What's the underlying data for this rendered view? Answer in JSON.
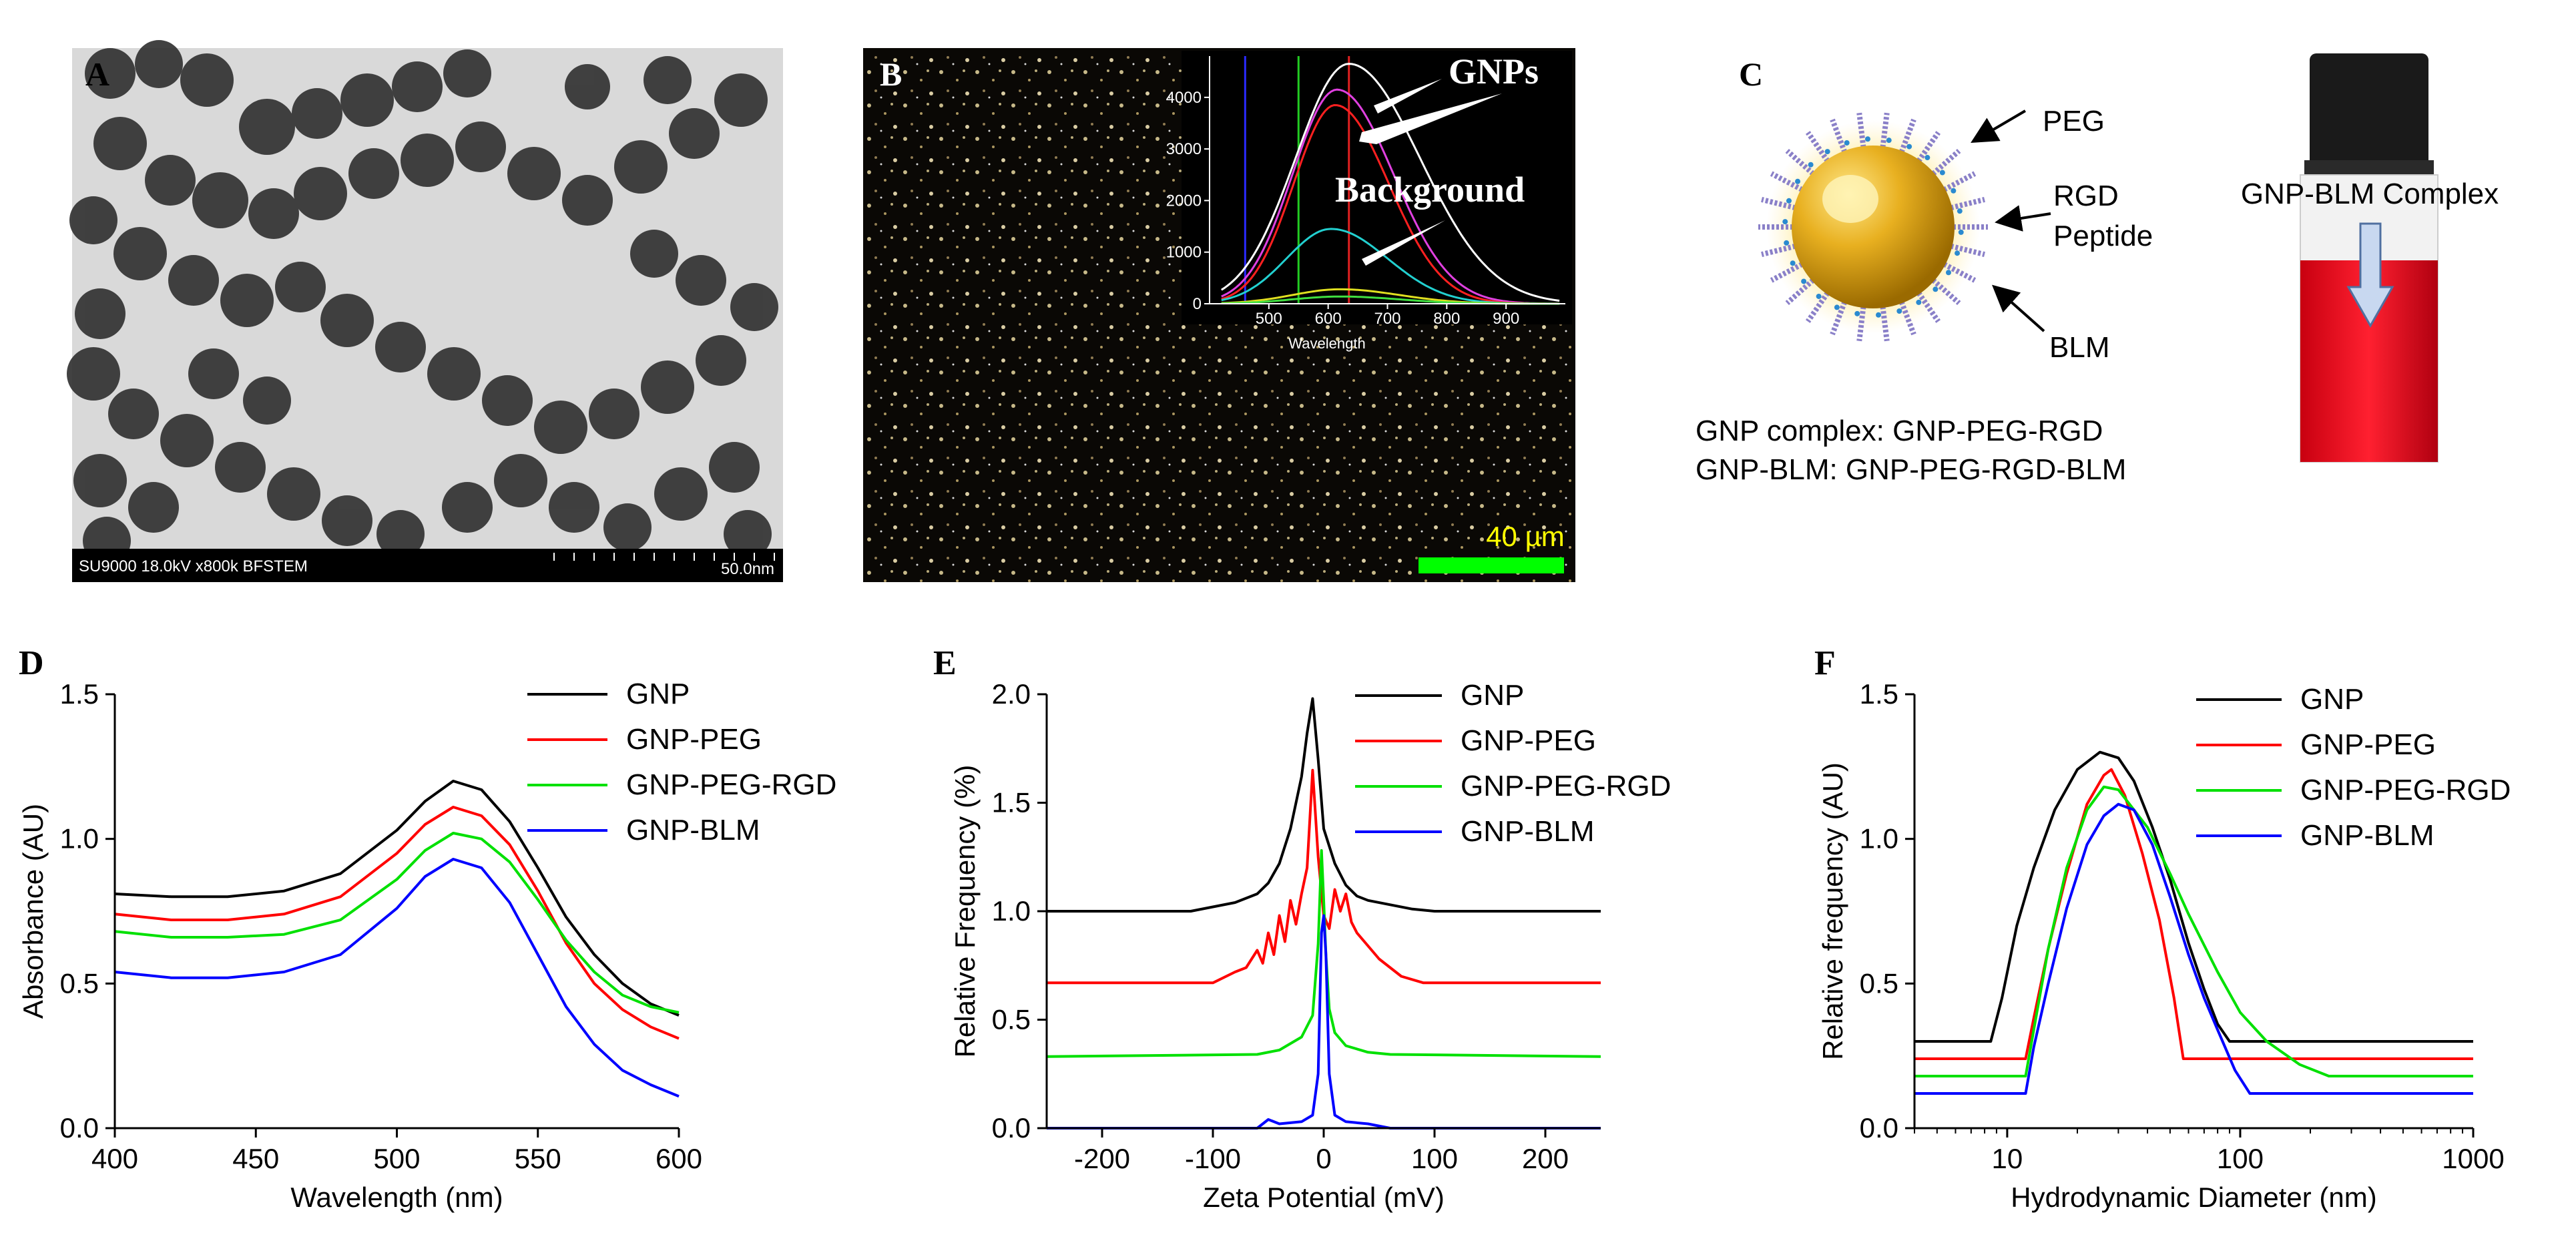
{
  "panels": {
    "A": {
      "label": "A",
      "info_left": "SU9000 18.0kV x800k BFSTEM",
      "info_right": "50.0nm"
    },
    "B": {
      "label": "B",
      "scale_bar_text": "40 µm",
      "inset": {
        "annotation_gnps": "GNPs",
        "annotation_background": "Background",
        "xlabel": "Wavelength",
        "x_ticks": [
          500,
          600,
          700,
          800,
          900
        ],
        "y_ticks": [
          0,
          1000,
          2000,
          3000,
          4000
        ],
        "xlim": [
          400,
          1000
        ],
        "ylim": [
          0,
          4800
        ],
        "vertical_lines_nm": [
          {
            "x": 460,
            "color": "#2a2aff"
          },
          {
            "x": 550,
            "color": "#22cc22"
          },
          {
            "x": 635,
            "color": "#e02020"
          }
        ],
        "series": [
          {
            "name": "white",
            "color": "#ffffff",
            "peak": 4650,
            "center": 635,
            "wl": 90,
            "wr": 120
          },
          {
            "name": "magenta",
            "color": "#e040e0",
            "peak": 4150,
            "center": 615,
            "wl": 75,
            "wr": 95
          },
          {
            "name": "red",
            "color": "#ff2020",
            "peak": 3850,
            "center": 612,
            "wl": 70,
            "wr": 90
          },
          {
            "name": "cyan",
            "color": "#22d0d0",
            "peak": 1450,
            "center": 605,
            "wl": 75,
            "wr": 95
          },
          {
            "name": "yellow",
            "color": "#e0e020",
            "peak": 280,
            "center": 620,
            "wl": 80,
            "wr": 100
          },
          {
            "name": "green",
            "color": "#40e040",
            "peak": 140,
            "center": 620,
            "wl": 80,
            "wr": 100
          }
        ]
      }
    },
    "C": {
      "label": "C",
      "label_peg": "PEG",
      "label_rgd": "RGD",
      "label_peptide": "Peptide",
      "label_blm": "BLM",
      "label_complex": "GNP-BLM Complex",
      "caption_line1": "GNP complex: GNP-PEG-RGD",
      "caption_line2": "GNP-BLM: GNP-PEG-RGD-BLM"
    },
    "D": {
      "label": "D"
    },
    "E": {
      "label": "E"
    },
    "F": {
      "label": "F"
    }
  },
  "chart_data": [
    {
      "id": "D",
      "type": "line",
      "title": "",
      "xlabel": "Wavelength (nm)",
      "ylabel": "Absorbance (AU)",
      "xlim": [
        400,
        600
      ],
      "ylim": [
        0,
        1.5
      ],
      "x_ticks": [
        400,
        450,
        500,
        550,
        600
      ],
      "y_ticks": [
        "0.0",
        "0.5",
        "1.0",
        "1.5"
      ],
      "legend": [
        "GNP",
        "GNP-PEG",
        "GNP-PEG-RGD",
        "GNP-BLM"
      ],
      "legend_position": "top-right",
      "series": [
        {
          "name": "GNP",
          "color": "#000000",
          "x": [
            400,
            420,
            440,
            460,
            480,
            500,
            510,
            520,
            530,
            540,
            550,
            560,
            570,
            580,
            590,
            600
          ],
          "y": [
            0.81,
            0.8,
            0.8,
            0.82,
            0.88,
            1.03,
            1.13,
            1.2,
            1.17,
            1.06,
            0.9,
            0.73,
            0.6,
            0.5,
            0.43,
            0.39
          ]
        },
        {
          "name": "GNP-PEG",
          "color": "#ff0000",
          "x": [
            400,
            420,
            440,
            460,
            480,
            500,
            510,
            520,
            530,
            540,
            550,
            560,
            570,
            580,
            590,
            600
          ],
          "y": [
            0.74,
            0.72,
            0.72,
            0.74,
            0.8,
            0.95,
            1.05,
            1.11,
            1.08,
            0.98,
            0.82,
            0.64,
            0.5,
            0.41,
            0.35,
            0.31
          ]
        },
        {
          "name": "GNP-PEG-RGD",
          "color": "#00e000",
          "x": [
            400,
            420,
            440,
            460,
            480,
            500,
            510,
            520,
            530,
            540,
            550,
            560,
            570,
            580,
            590,
            600
          ],
          "y": [
            0.68,
            0.66,
            0.66,
            0.67,
            0.72,
            0.86,
            0.96,
            1.02,
            1.0,
            0.92,
            0.79,
            0.65,
            0.54,
            0.46,
            0.42,
            0.4
          ]
        },
        {
          "name": "GNP-BLM",
          "color": "#0000ff",
          "x": [
            400,
            420,
            440,
            460,
            480,
            500,
            510,
            520,
            530,
            540,
            550,
            560,
            570,
            580,
            590,
            600
          ],
          "y": [
            0.54,
            0.52,
            0.52,
            0.54,
            0.6,
            0.76,
            0.87,
            0.93,
            0.9,
            0.78,
            0.6,
            0.42,
            0.29,
            0.2,
            0.15,
            0.11
          ]
        }
      ]
    },
    {
      "id": "E",
      "type": "line",
      "title": "",
      "xlabel": "Zeta Potential (mV)",
      "ylabel": "Relative Frequency (%)",
      "xlim": [
        -250,
        250
      ],
      "ylim": [
        0,
        2.0
      ],
      "x_ticks": [
        "-200",
        "-100",
        "0",
        "100",
        "200"
      ],
      "y_ticks": [
        "0.0",
        "0.5",
        "1.0",
        "1.5",
        "2.0"
      ],
      "legend": [
        "GNP",
        "GNP-PEG",
        "GNP-PEG-RGD",
        "GNP-BLM"
      ],
      "legend_position": "top-right",
      "series": [
        {
          "name": "GNP",
          "color": "#000000",
          "x": [
            -250,
            -120,
            -100,
            -80,
            -60,
            -50,
            -40,
            -30,
            -20,
            -15,
            -10,
            -5,
            0,
            10,
            20,
            30,
            40,
            60,
            80,
            100,
            250
          ],
          "y": [
            1.0,
            1.0,
            1.02,
            1.04,
            1.08,
            1.13,
            1.22,
            1.38,
            1.62,
            1.82,
            1.98,
            1.7,
            1.38,
            1.22,
            1.12,
            1.07,
            1.05,
            1.03,
            1.01,
            1.0,
            1.0
          ]
        },
        {
          "name": "GNP-PEG",
          "color": "#ff0000",
          "x": [
            -250,
            -100,
            -80,
            -70,
            -60,
            -55,
            -50,
            -45,
            -40,
            -35,
            -30,
            -25,
            -20,
            -15,
            -10,
            -5,
            0,
            5,
            10,
            15,
            20,
            25,
            30,
            40,
            50,
            60,
            70,
            90,
            250
          ],
          "y": [
            0.67,
            0.67,
            0.72,
            0.74,
            0.82,
            0.76,
            0.9,
            0.8,
            0.98,
            0.86,
            1.05,
            0.94,
            1.08,
            1.2,
            1.65,
            1.25,
            0.98,
            0.92,
            1.1,
            1.0,
            1.08,
            0.95,
            0.9,
            0.84,
            0.78,
            0.74,
            0.7,
            0.67,
            0.67
          ]
        },
        {
          "name": "GNP-PEG-RGD",
          "color": "#00e000",
          "x": [
            -250,
            -60,
            -40,
            -20,
            -10,
            -5,
            -2,
            0,
            2,
            5,
            10,
            20,
            40,
            60,
            250
          ],
          "y": [
            0.33,
            0.34,
            0.36,
            0.42,
            0.52,
            0.85,
            1.28,
            1.05,
            0.8,
            0.55,
            0.44,
            0.38,
            0.35,
            0.34,
            0.33
          ]
        },
        {
          "name": "GNP-BLM",
          "color": "#0000ff",
          "x": [
            -250,
            -60,
            -50,
            -40,
            -20,
            -10,
            -5,
            -2,
            0,
            2,
            5,
            10,
            20,
            40,
            60,
            250
          ],
          "y": [
            0.0,
            0.0,
            0.04,
            0.02,
            0.03,
            0.06,
            0.25,
            0.9,
            0.98,
            0.8,
            0.25,
            0.06,
            0.03,
            0.02,
            0.0,
            0.0
          ]
        }
      ]
    },
    {
      "id": "F",
      "type": "line",
      "title": "",
      "xlabel": "Hydrodynamic Diameter (nm)",
      "ylabel": "Relative frequency (AU)",
      "xscale": "log",
      "xlim": [
        4,
        1000
      ],
      "ylim": [
        0,
        1.5
      ],
      "x_ticks": [
        10,
        100,
        1000
      ],
      "y_ticks": [
        "0.0",
        "0.5",
        "1.0",
        "1.5"
      ],
      "legend": [
        "GNP",
        "GNP-PEG",
        "GNP-PEG-RGD",
        "GNP-BLM"
      ],
      "legend_position": "top-right",
      "series": [
        {
          "name": "GNP",
          "color": "#000000",
          "x": [
            4,
            8.5,
            9.5,
            11,
            13,
            16,
            20,
            25,
            30,
            35,
            42,
            50,
            60,
            70,
            80,
            90,
            1000
          ],
          "y": [
            0.3,
            0.3,
            0.45,
            0.7,
            0.9,
            1.1,
            1.24,
            1.3,
            1.28,
            1.2,
            1.04,
            0.86,
            0.64,
            0.48,
            0.36,
            0.3,
            0.3
          ]
        },
        {
          "name": "GNP-PEG",
          "color": "#ff0000",
          "x": [
            4,
            12,
            13,
            15,
            18,
            22,
            26,
            28,
            32,
            38,
            45,
            52,
            57,
            1000
          ],
          "y": [
            0.24,
            0.24,
            0.38,
            0.62,
            0.88,
            1.12,
            1.22,
            1.24,
            1.15,
            0.95,
            0.72,
            0.45,
            0.24,
            0.24
          ]
        },
        {
          "name": "GNP-PEG-RGD",
          "color": "#00e000",
          "x": [
            4,
            12,
            13,
            15,
            18,
            22,
            26,
            30,
            40,
            50,
            60,
            80,
            100,
            130,
            180,
            240,
            1000
          ],
          "y": [
            0.18,
            0.18,
            0.34,
            0.62,
            0.9,
            1.1,
            1.18,
            1.17,
            1.04,
            0.88,
            0.74,
            0.54,
            0.4,
            0.3,
            0.22,
            0.18,
            0.18
          ]
        },
        {
          "name": "GNP-BLM",
          "color": "#0000ff",
          "x": [
            4,
            12,
            13,
            15,
            18,
            22,
            26,
            30,
            35,
            42,
            50,
            60,
            70,
            80,
            95,
            110,
            1000
          ],
          "y": [
            0.12,
            0.12,
            0.28,
            0.5,
            0.76,
            0.98,
            1.08,
            1.12,
            1.1,
            0.98,
            0.8,
            0.6,
            0.45,
            0.34,
            0.2,
            0.12,
            0.12
          ]
        }
      ]
    }
  ]
}
